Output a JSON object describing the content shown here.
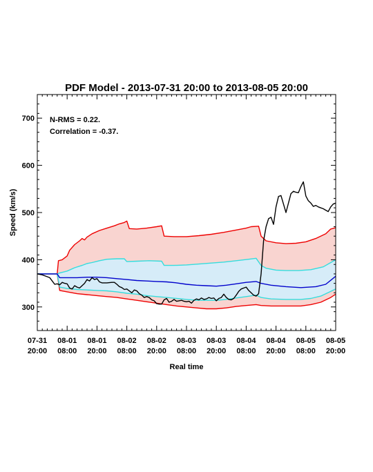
{
  "chart_data": {
    "type": "line",
    "title": "PDF Model - 2013-07-31 20:00 to 2013-08-05 20:00",
    "xlabel": "Real time",
    "ylabel": "Speed (km/s)",
    "annotations": [
      "N-RMS = 0.22.",
      "Correlation = -0.37."
    ],
    "xlim": [
      0,
      120
    ],
    "ylim": [
      250,
      750
    ],
    "yticks": [
      300,
      400,
      500,
      600,
      700
    ],
    "xticks": [
      {
        "x": 0,
        "line1": "07-31",
        "line2": "20:00"
      },
      {
        "x": 12,
        "line1": "08-01",
        "line2": "08:00"
      },
      {
        "x": 24,
        "line1": "08-01",
        "line2": "20:00"
      },
      {
        "x": 36,
        "line1": "08-02",
        "line2": "08:00"
      },
      {
        "x": 48,
        "line1": "08-02",
        "line2": "20:00"
      },
      {
        "x": 60,
        "line1": "08-03",
        "line2": "08:00"
      },
      {
        "x": 72,
        "line1": "08-03",
        "line2": "20:00"
      },
      {
        "x": 84,
        "line1": "08-04",
        "line2": "08:00"
      },
      {
        "x": 96,
        "line1": "08-04",
        "line2": "20:00"
      },
      {
        "x": 108,
        "line1": "08-05",
        "line2": "08:00"
      },
      {
        "x": 120,
        "line1": "08-05",
        "line2": "20:00"
      }
    ],
    "colors": {
      "observed": "#000000",
      "median": "#0000cc",
      "inner": "#33dddd",
      "outer": "#ee0000",
      "outer_fill": "#f9d4d0",
      "inner_fill": "#d6ecf8"
    },
    "series": [
      {
        "role": "outer_upper",
        "points": [
          [
            0,
            370
          ],
          [
            8,
            370
          ],
          [
            8.5,
            398
          ],
          [
            10,
            400
          ],
          [
            12,
            408
          ],
          [
            13,
            420
          ],
          [
            15,
            432
          ],
          [
            17,
            440
          ],
          [
            18,
            445
          ],
          [
            19,
            442
          ],
          [
            20,
            448
          ],
          [
            22,
            455
          ],
          [
            25,
            462
          ],
          [
            28,
            467
          ],
          [
            31,
            472
          ],
          [
            33,
            476
          ],
          [
            35,
            479
          ],
          [
            36,
            482
          ],
          [
            37,
            466
          ],
          [
            40,
            465
          ],
          [
            44,
            467
          ],
          [
            48,
            470
          ],
          [
            50,
            472
          ],
          [
            51,
            450
          ],
          [
            55,
            449
          ],
          [
            60,
            449
          ],
          [
            65,
            451
          ],
          [
            70,
            454
          ],
          [
            75,
            458
          ],
          [
            80,
            463
          ],
          [
            84,
            467
          ],
          [
            86,
            470
          ],
          [
            89,
            471
          ],
          [
            90,
            450
          ],
          [
            92,
            440
          ],
          [
            96,
            436
          ],
          [
            100,
            434
          ],
          [
            104,
            435
          ],
          [
            108,
            438
          ],
          [
            112,
            445
          ],
          [
            116,
            455
          ],
          [
            118,
            465
          ],
          [
            120,
            468
          ]
        ]
      },
      {
        "role": "inner_upper",
        "points": [
          [
            0,
            370
          ],
          [
            8,
            370
          ],
          [
            9,
            372
          ],
          [
            12,
            376
          ],
          [
            15,
            383
          ],
          [
            18,
            388
          ],
          [
            20,
            392
          ],
          [
            22,
            394
          ],
          [
            25,
            398
          ],
          [
            28,
            401
          ],
          [
            32,
            402
          ],
          [
            35,
            402
          ],
          [
            36,
            396
          ],
          [
            40,
            397
          ],
          [
            45,
            398
          ],
          [
            50,
            397
          ],
          [
            51,
            388
          ],
          [
            55,
            388
          ],
          [
            60,
            389
          ],
          [
            65,
            391
          ],
          [
            70,
            393
          ],
          [
            75,
            395
          ],
          [
            80,
            398
          ],
          [
            85,
            401
          ],
          [
            88,
            403
          ],
          [
            90,
            388
          ],
          [
            92,
            382
          ],
          [
            96,
            378
          ],
          [
            100,
            377
          ],
          [
            105,
            377
          ],
          [
            110,
            379
          ],
          [
            115,
            385
          ],
          [
            118,
            394
          ],
          [
            120,
            400
          ]
        ]
      },
      {
        "role": "median",
        "points": [
          [
            0,
            370
          ],
          [
            8,
            370
          ],
          [
            9,
            362
          ],
          [
            12,
            362
          ],
          [
            16,
            362
          ],
          [
            20,
            363
          ],
          [
            24,
            363
          ],
          [
            28,
            362
          ],
          [
            32,
            360
          ],
          [
            36,
            358
          ],
          [
            40,
            356
          ],
          [
            44,
            355
          ],
          [
            48,
            354
          ],
          [
            52,
            353
          ],
          [
            56,
            351
          ],
          [
            60,
            348
          ],
          [
            64,
            346
          ],
          [
            68,
            345
          ],
          [
            72,
            344
          ],
          [
            76,
            346
          ],
          [
            80,
            349
          ],
          [
            84,
            352
          ],
          [
            88,
            354
          ],
          [
            90,
            350
          ],
          [
            94,
            346
          ],
          [
            100,
            343
          ],
          [
            106,
            341
          ],
          [
            112,
            343
          ],
          [
            116,
            348
          ],
          [
            120,
            365
          ]
        ]
      },
      {
        "role": "inner_lower",
        "points": [
          [
            0,
            370
          ],
          [
            8,
            370
          ],
          [
            9,
            342
          ],
          [
            12,
            339
          ],
          [
            16,
            337
          ],
          [
            20,
            336
          ],
          [
            24,
            335
          ],
          [
            28,
            334
          ],
          [
            32,
            332
          ],
          [
            36,
            329
          ],
          [
            40,
            327
          ],
          [
            44,
            324
          ],
          [
            48,
            322
          ],
          [
            52,
            320
          ],
          [
            56,
            318
          ],
          [
            60,
            316
          ],
          [
            64,
            314
          ],
          [
            68,
            314
          ],
          [
            72,
            314
          ],
          [
            76,
            316
          ],
          [
            80,
            319
          ],
          [
            84,
            322
          ],
          [
            88,
            325
          ],
          [
            90,
            320
          ],
          [
            94,
            317
          ],
          [
            100,
            316
          ],
          [
            106,
            316
          ],
          [
            110,
            318
          ],
          [
            114,
            323
          ],
          [
            118,
            333
          ],
          [
            120,
            338
          ]
        ]
      },
      {
        "role": "outer_lower",
        "points": [
          [
            0,
            370
          ],
          [
            8,
            370
          ],
          [
            9,
            335
          ],
          [
            12,
            332
          ],
          [
            16,
            328
          ],
          [
            20,
            326
          ],
          [
            24,
            324
          ],
          [
            28,
            322
          ],
          [
            32,
            320
          ],
          [
            36,
            317
          ],
          [
            40,
            314
          ],
          [
            44,
            311
          ],
          [
            48,
            308
          ],
          [
            52,
            305
          ],
          [
            56,
            302
          ],
          [
            60,
            300
          ],
          [
            64,
            298
          ],
          [
            68,
            296
          ],
          [
            72,
            296
          ],
          [
            76,
            298
          ],
          [
            80,
            301
          ],
          [
            84,
            303
          ],
          [
            88,
            305
          ],
          [
            90,
            303
          ],
          [
            94,
            302
          ],
          [
            100,
            302
          ],
          [
            106,
            302
          ],
          [
            110,
            305
          ],
          [
            114,
            310
          ],
          [
            118,
            320
          ],
          [
            120,
            327
          ]
        ]
      },
      {
        "role": "observed",
        "points": [
          [
            0,
            370
          ],
          [
            2,
            368
          ],
          [
            4,
            364
          ],
          [
            5,
            362
          ],
          [
            6,
            355
          ],
          [
            7,
            348
          ],
          [
            8,
            349
          ],
          [
            9,
            347
          ],
          [
            10,
            352
          ],
          [
            11,
            350
          ],
          [
            12,
            349
          ],
          [
            13,
            340
          ],
          [
            14,
            338
          ],
          [
            15,
            345
          ],
          [
            16,
            342
          ],
          [
            17,
            340
          ],
          [
            18,
            345
          ],
          [
            19,
            350
          ],
          [
            20,
            358
          ],
          [
            21,
            355
          ],
          [
            22,
            362
          ],
          [
            23,
            358
          ],
          [
            24,
            360
          ],
          [
            25,
            353
          ],
          [
            26,
            351
          ],
          [
            28,
            351
          ],
          [
            30,
            352
          ],
          [
            31,
            352
          ],
          [
            32,
            348
          ],
          [
            33,
            343
          ],
          [
            34,
            341
          ],
          [
            35,
            337
          ],
          [
            36,
            338
          ],
          [
            37,
            334
          ],
          [
            38,
            330
          ],
          [
            39,
            336
          ],
          [
            40,
            334
          ],
          [
            41,
            328
          ],
          [
            42,
            325
          ],
          [
            43,
            320
          ],
          [
            44,
            322
          ],
          [
            45,
            320
          ],
          [
            46,
            315
          ],
          [
            47,
            313
          ],
          [
            48,
            307
          ],
          [
            49,
            306
          ],
          [
            50,
            306
          ],
          [
            51,
            315
          ],
          [
            52,
            318
          ],
          [
            53,
            310
          ],
          [
            54,
            312
          ],
          [
            55,
            316
          ],
          [
            56,
            312
          ],
          [
            57,
            313
          ],
          [
            58,
            314
          ],
          [
            59,
            312
          ],
          [
            60,
            311
          ],
          [
            61,
            312
          ],
          [
            62,
            308
          ],
          [
            63,
            314
          ],
          [
            64,
            317
          ],
          [
            65,
            315
          ],
          [
            66,
            319
          ],
          [
            67,
            316
          ],
          [
            68,
            317
          ],
          [
            69,
            320
          ],
          [
            70,
            318
          ],
          [
            71,
            319
          ],
          [
            72,
            313
          ],
          [
            73,
            318
          ],
          [
            74,
            320
          ],
          [
            75,
            327
          ],
          [
            76,
            320
          ],
          [
            77,
            316
          ],
          [
            78,
            315
          ],
          [
            79,
            318
          ],
          [
            80,
            325
          ],
          [
            81,
            333
          ],
          [
            82,
            338
          ],
          [
            83,
            340
          ],
          [
            84,
            342
          ],
          [
            85,
            335
          ],
          [
            86,
            330
          ],
          [
            87,
            325
          ],
          [
            88,
            323
          ],
          [
            89,
            328
          ],
          [
            90,
            370
          ],
          [
            91,
            440
          ],
          [
            92,
            470
          ],
          [
            93,
            487
          ],
          [
            94,
            490
          ],
          [
            95,
            475
          ],
          [
            96,
            512
          ],
          [
            97,
            534
          ],
          [
            98,
            536
          ],
          [
            99,
            518
          ],
          [
            100,
            500
          ],
          [
            101,
            520
          ],
          [
            102,
            540
          ],
          [
            103,
            545
          ],
          [
            104,
            543
          ],
          [
            105,
            542
          ],
          [
            106,
            555
          ],
          [
            107,
            565
          ],
          [
            108,
            535
          ],
          [
            109,
            525
          ],
          [
            110,
            520
          ],
          [
            111,
            513
          ],
          [
            112,
            515
          ],
          [
            113,
            512
          ],
          [
            114,
            510
          ],
          [
            115,
            508
          ],
          [
            116,
            505
          ],
          [
            117,
            502
          ],
          [
            118,
            512
          ],
          [
            119,
            518
          ],
          [
            120,
            520
          ]
        ]
      }
    ]
  }
}
